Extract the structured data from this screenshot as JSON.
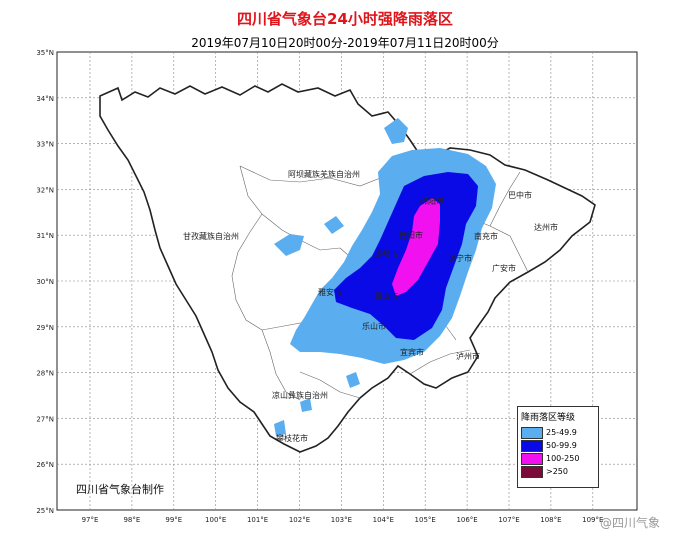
{
  "title": "四川省气象台24小时强降雨落区",
  "subtitle": "2019年07月10日20时00分-2019年07月11日20时00分",
  "lat_labels": [
    "35°N",
    "34°N",
    "33°N",
    "32°N",
    "31°N",
    "30°N",
    "29°N",
    "28°N",
    "27°N",
    "26°N",
    "25°N"
  ],
  "lon_labels": [
    "97°E",
    "98°E",
    "99°E",
    "100°E",
    "101°E",
    "102°E",
    "103°E",
    "104°E",
    "105°E",
    "106°E",
    "107°E",
    "108°E",
    "109°E"
  ],
  "places": [
    {
      "name": "阿坝藏族羌族自治州",
      "kind": "prefecture"
    },
    {
      "name": "甘孜藏族自治州",
      "kind": "prefecture"
    },
    {
      "name": "凉山彝族自治州",
      "kind": "prefecture"
    },
    {
      "name": "巴中市",
      "kind": "city"
    },
    {
      "name": "达州市",
      "kind": "city"
    },
    {
      "name": "南充市",
      "kind": "city"
    },
    {
      "name": "广安市",
      "kind": "city"
    },
    {
      "name": "遂宁市",
      "kind": "city"
    },
    {
      "name": "成都市",
      "kind": "city"
    },
    {
      "name": "德阳市",
      "kind": "city"
    },
    {
      "name": "绵阳市",
      "kind": "city"
    },
    {
      "name": "雅安市",
      "kind": "city"
    },
    {
      "name": "眉山市",
      "kind": "city"
    },
    {
      "name": "乐山市",
      "kind": "city"
    },
    {
      "name": "宜宾市",
      "kind": "city"
    },
    {
      "name": "泸州市",
      "kind": "city"
    },
    {
      "name": "攀枝花市",
      "kind": "city"
    }
  ],
  "legend": {
    "title": "降雨落区等级",
    "items": [
      {
        "label": "25-49.9",
        "color": "#5aaef0"
      },
      {
        "label": "50-99.9",
        "color": "#0a0ae6"
      },
      {
        "label": "100-250",
        "color": "#f010f0"
      },
      {
        "label": ">250",
        "color": "#7a0a3a"
      }
    ]
  },
  "credit": "四川省气象台制作",
  "watermark": "@四川气象",
  "colors": {
    "title": "#e0141b",
    "border": "#222222",
    "grid": "#888888"
  }
}
